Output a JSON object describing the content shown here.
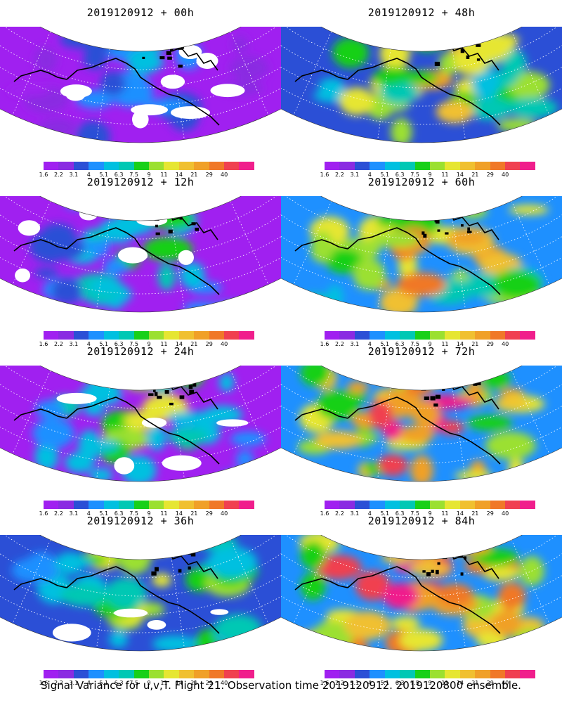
{
  "caption": "Signal Variance for u,v,T. Flight 21. Observation time 2019120912. 2019120800 ensemble.",
  "colorbar": {
    "colors": [
      "#a020f0",
      "#8a2be2",
      "#2b4fd6",
      "#1e90ff",
      "#00c0e0",
      "#00c8b4",
      "#18d018",
      "#9be030",
      "#e6e632",
      "#f0c030",
      "#f0a028",
      "#f07828",
      "#f04050",
      "#f01e8c"
    ],
    "tick_labels": [
      "1.6",
      "2.2",
      "3.1",
      "4",
      "5.1",
      "6.3",
      "7.5",
      "9",
      "11",
      "14",
      "21",
      "29",
      "40"
    ]
  },
  "panels": [
    {
      "title": "2019120912 + 00h",
      "lead_hours": 0
    },
    {
      "title": "2019120912 + 48h",
      "lead_hours": 48
    },
    {
      "title": "2019120912 + 12h",
      "lead_hours": 12
    },
    {
      "title": "2019120912 + 60h",
      "lead_hours": 60
    },
    {
      "title": "2019120912 + 24h",
      "lead_hours": 24
    },
    {
      "title": "2019120912 + 72h",
      "lead_hours": 72
    },
    {
      "title": "2019120912 + 36h",
      "lead_hours": 36
    },
    {
      "title": "2019120912 + 84h",
      "lead_hours": 84
    }
  ]
}
